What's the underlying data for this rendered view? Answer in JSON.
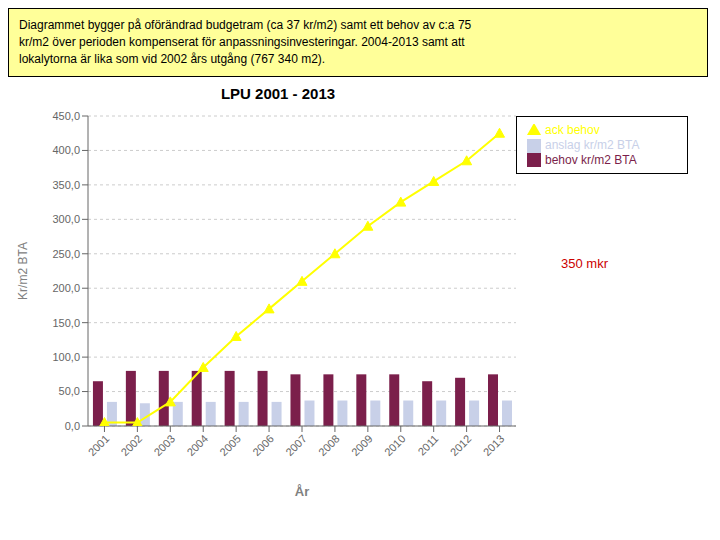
{
  "chart_data": {
    "type": "bar",
    "title": "LPU 2001 - 2013",
    "xlabel": "År",
    "ylabel": "Kr/m2 BTA",
    "categories": [
      2001,
      2002,
      2003,
      2004,
      2005,
      2006,
      2007,
      2008,
      2009,
      2010,
      2011,
      2012,
      2013
    ],
    "series": [
      {
        "name": "behov kr/m2 BTA",
        "type": "bar",
        "color": "#7B1F4B",
        "values": [
          65,
          80,
          80,
          80,
          80,
          80,
          75,
          75,
          75,
          75,
          65,
          70,
          75
        ]
      },
      {
        "name": "anslag kr/m2 BTA",
        "type": "bar",
        "color": "#C8D0E8",
        "values": [
          35,
          33,
          35,
          35,
          35,
          35,
          37,
          37,
          37,
          37,
          37,
          37,
          37
        ]
      },
      {
        "name": "ack behov",
        "type": "line",
        "color": "#FFFF00",
        "marker": "triangle",
        "values": [
          5,
          5,
          35,
          85,
          130,
          170,
          210,
          250,
          290,
          325,
          355,
          385,
          425
        ]
      }
    ],
    "ylim": [
      0,
      450
    ],
    "yticks": [
      {
        "value": 0,
        "label": "0,0"
      },
      {
        "value": 50,
        "label": "50,0"
      },
      {
        "value": 100,
        "label": "100,0"
      },
      {
        "value": 150,
        "label": "150,0"
      },
      {
        "value": 200,
        "label": "200,0"
      },
      {
        "value": 250,
        "label": "250,0"
      },
      {
        "value": 300,
        "label": "300,0"
      },
      {
        "value": 350,
        "label": "350,0"
      },
      {
        "value": 400,
        "label": "400,0"
      },
      {
        "value": 450,
        "label": "450,0"
      }
    ],
    "grid": true,
    "legend": "right",
    "annotations": [
      {
        "text": "350 mkr",
        "color": "#CC0000"
      }
    ],
    "text_box": [
      "Diagrammet bygger på oförändrad budgetram (ca 37 kr/m2) samt ett behov av c:a 75",
      "kr/m2 över perioden kompenserat för anpassningsinvesteringar. 2004-2013 samt att",
      "lokalytorna är lika som vid 2002 års utgång (767 340 m2)."
    ]
  }
}
